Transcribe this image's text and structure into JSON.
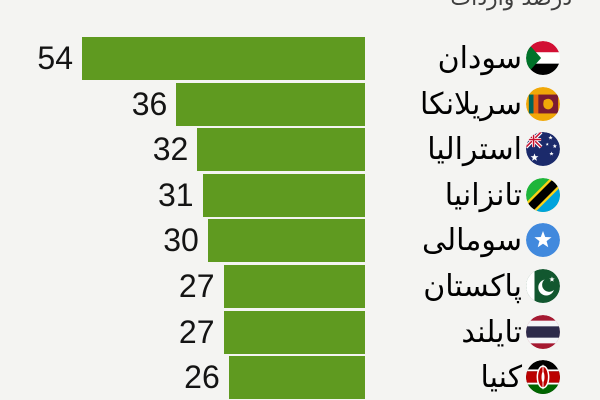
{
  "title": "درصد واردات",
  "colors": {
    "background": "#f4f4f2",
    "bar": "#5f9a20",
    "title_text": "#3f3f3f",
    "value_text": "#141414",
    "label_text": "#000000"
  },
  "chart_data": {
    "type": "bar",
    "orientation": "horizontal",
    "direction": "rtl",
    "title": "درصد واردات",
    "categories": [
      "سودان",
      "سریلانکا",
      "استرالیا",
      "تانزانیا",
      "سومالی",
      "پاکستان",
      "تایلند",
      "کنیا"
    ],
    "values": [
      54,
      36,
      32,
      31,
      30,
      27,
      27,
      26
    ],
    "flag_icons": [
      "sudan-flag-icon",
      "sri-lanka-flag-icon",
      "australia-flag-icon",
      "tanzania-flag-icon",
      "somalia-flag-icon",
      "pakistan-flag-icon",
      "thailand-flag-icon",
      "kenya-flag-icon"
    ],
    "value_labels": "left-of-bar",
    "bar_alignment": "right",
    "xlim": [
      0,
      54
    ],
    "legend": "none",
    "grid": "off"
  }
}
